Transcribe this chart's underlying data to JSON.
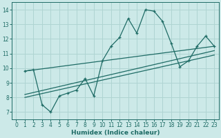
{
  "xlabel": "Humidex (Indice chaleur)",
  "xlim": [
    -0.5,
    23.5
  ],
  "ylim": [
    6.5,
    14.5
  ],
  "yticks": [
    7,
    8,
    9,
    10,
    11,
    12,
    13,
    14
  ],
  "xticks": [
    0,
    1,
    2,
    3,
    4,
    5,
    6,
    7,
    8,
    9,
    10,
    11,
    12,
    13,
    14,
    15,
    16,
    17,
    18,
    19,
    20,
    21,
    22,
    23
  ],
  "bg_color": "#cce9e8",
  "grid_color": "#afd4d2",
  "line_color": "#1e6b65",
  "line1_x": [
    1,
    2,
    3,
    4,
    5,
    6,
    7,
    8,
    9,
    10,
    11,
    12,
    13,
    14,
    15,
    16,
    17,
    18,
    19,
    20,
    21,
    22,
    23
  ],
  "line1_y": [
    9.8,
    9.9,
    7.5,
    7.0,
    8.1,
    8.3,
    8.5,
    9.3,
    8.1,
    10.5,
    11.5,
    12.1,
    13.4,
    12.4,
    14.0,
    13.9,
    13.2,
    11.7,
    10.1,
    10.5,
    11.5,
    12.2,
    11.5
  ],
  "line2_x": [
    1,
    23
  ],
  "line2_y": [
    9.8,
    11.5
  ],
  "line3_x": [
    1,
    23
  ],
  "line3_y": [
    8.2,
    11.2
  ],
  "line4_x": [
    1,
    23
  ],
  "line4_y": [
    8.0,
    10.9
  ]
}
